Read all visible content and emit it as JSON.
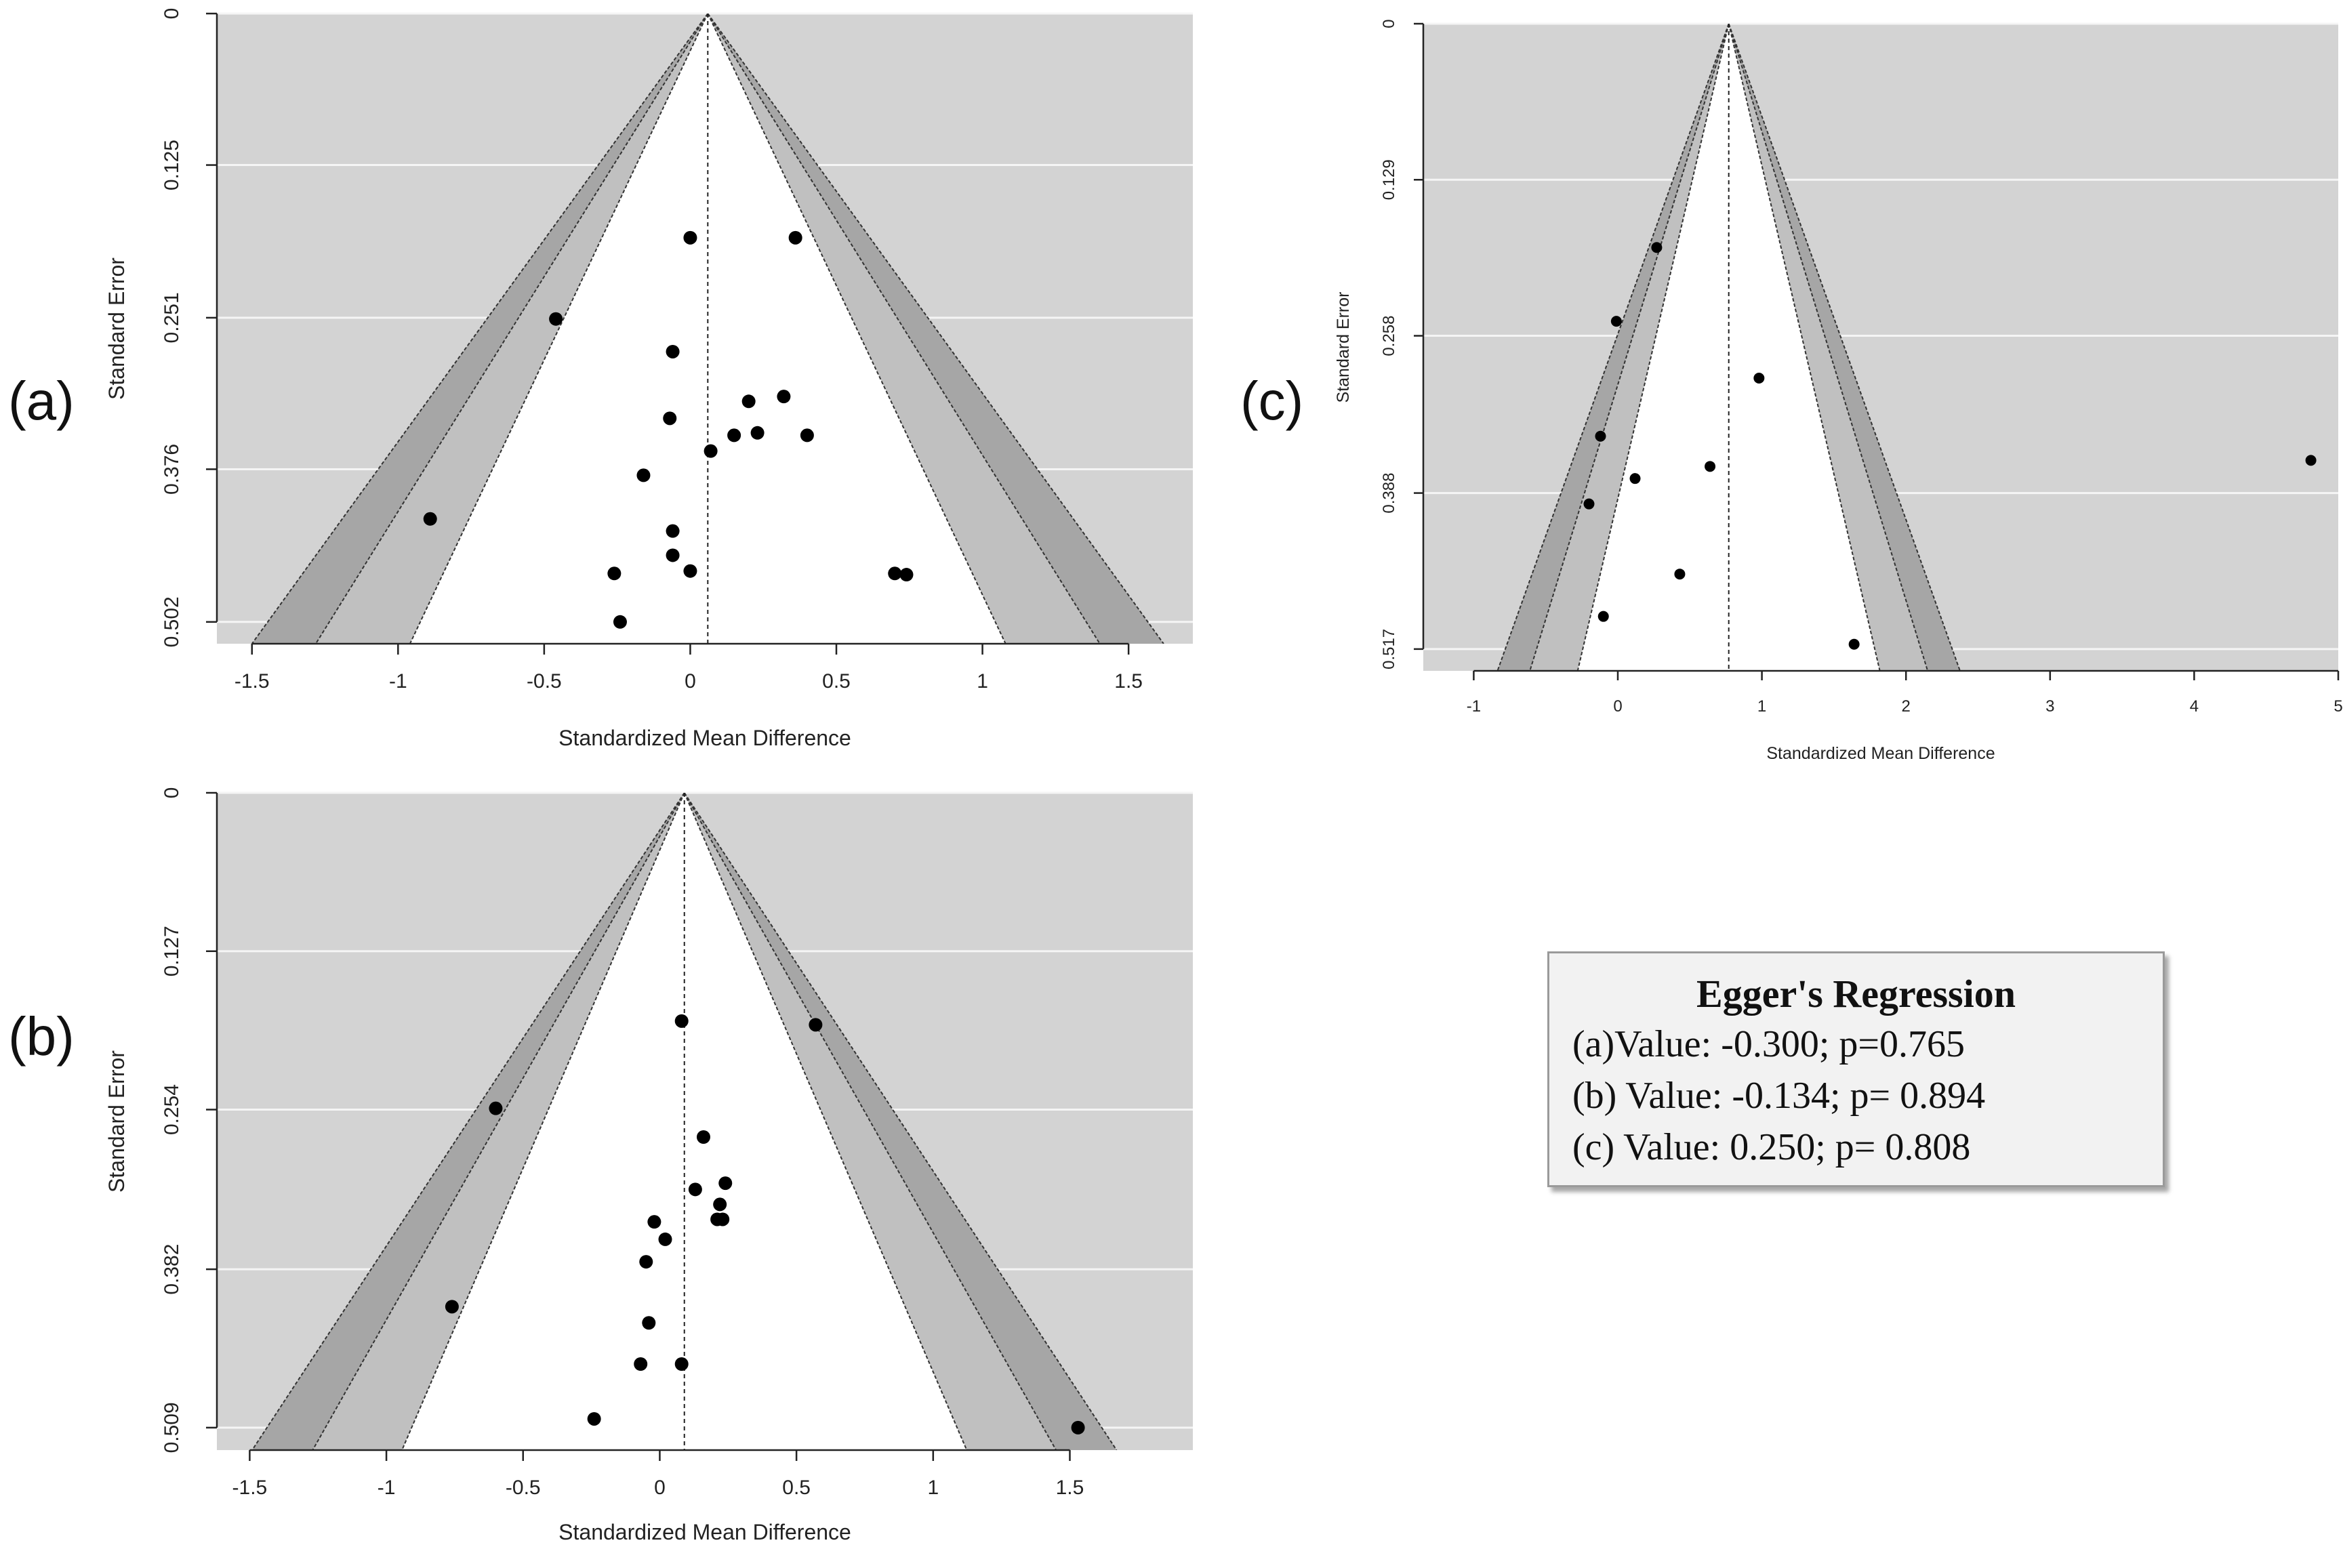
{
  "panels": [
    {
      "id": "a",
      "label": "(a)"
    },
    {
      "id": "b",
      "label": "(b)"
    },
    {
      "id": "c",
      "label": "(c)"
    }
  ],
  "egger": {
    "title": "Egger's Regression",
    "lines": [
      "(a)Value: -0.300; p=0.765",
      "(b) Value: -0.134; p= 0.894",
      "(c) Value: 0.250; p= 0.808"
    ]
  },
  "colors": {
    "background": "#d3d3d3",
    "outer_band": "#a6a6a6",
    "middle_band": "#c0c0c0",
    "inner_funnel": "#ffffff",
    "points": "#000000",
    "gridline": "#f5f5f5"
  },
  "chart_data": [
    {
      "id": "a",
      "type": "scatter",
      "subtype": "contour-enhanced funnel",
      "xlabel": "Standardized Mean Difference",
      "ylabel": "Standard Error",
      "xlim": [
        -1.62,
        1.72
      ],
      "ylim": [
        0,
        0.52
      ],
      "y_reversed": true,
      "xticks": [
        -1.5,
        -1,
        -0.5,
        0,
        0.5,
        1,
        1.5
      ],
      "xtick_labels": [
        "-1.5",
        "-1",
        "-0.5",
        "0",
        "0.5",
        "1",
        "1.5"
      ],
      "yticks": [
        0,
        0.125,
        0.251,
        0.376,
        0.502
      ],
      "ytick_labels": [
        "0",
        "0.125",
        "0.251",
        "0.376",
        "0.502"
      ],
      "center": 0.06,
      "z_levels": [
        1.96,
        2.58,
        3.0
      ],
      "points": [
        {
          "x": 0.0,
          "y": 0.185
        },
        {
          "x": 0.36,
          "y": 0.185
        },
        {
          "x": -0.46,
          "y": 0.252
        },
        {
          "x": -0.06,
          "y": 0.279
        },
        {
          "x": 0.2,
          "y": 0.32
        },
        {
          "x": 0.32,
          "y": 0.316
        },
        {
          "x": -0.07,
          "y": 0.334
        },
        {
          "x": 0.15,
          "y": 0.348
        },
        {
          "x": 0.23,
          "y": 0.346
        },
        {
          "x": 0.4,
          "y": 0.348
        },
        {
          "x": 0.07,
          "y": 0.361
        },
        {
          "x": -0.16,
          "y": 0.381
        },
        {
          "x": -0.89,
          "y": 0.417
        },
        {
          "x": -0.06,
          "y": 0.427
        },
        {
          "x": -0.06,
          "y": 0.447
        },
        {
          "x": 0.0,
          "y": 0.46
        },
        {
          "x": -0.26,
          "y": 0.462
        },
        {
          "x": 0.7,
          "y": 0.462
        },
        {
          "x": 0.74,
          "y": 0.463
        },
        {
          "x": -0.24,
          "y": 0.502
        }
      ]
    },
    {
      "id": "b",
      "type": "scatter",
      "subtype": "contour-enhanced funnel",
      "xlabel": "Standardized Mean Difference",
      "ylabel": "Standard Error",
      "xlim": [
        -1.62,
        1.95
      ],
      "ylim": [
        0,
        0.527
      ],
      "y_reversed": true,
      "xticks": [
        -1.5,
        -1,
        -0.5,
        0,
        0.5,
        1,
        1.5
      ],
      "xtick_labels": [
        "-1.5",
        "-1",
        "-0.5",
        "0",
        "0.5",
        "1",
        "1.5"
      ],
      "yticks": [
        0,
        0.127,
        0.254,
        0.382,
        0.509
      ],
      "ytick_labels": [
        "0",
        "0.127",
        "0.254",
        "0.382",
        "0.509"
      ],
      "center": 0.09,
      "z_levels": [
        1.96,
        2.58,
        3.0
      ],
      "points": [
        {
          "x": 0.08,
          "y": 0.183
        },
        {
          "x": 0.57,
          "y": 0.186
        },
        {
          "x": -0.6,
          "y": 0.253
        },
        {
          "x": 0.16,
          "y": 0.276
        },
        {
          "x": 0.24,
          "y": 0.313
        },
        {
          "x": 0.13,
          "y": 0.318
        },
        {
          "x": 0.22,
          "y": 0.33
        },
        {
          "x": 0.21,
          "y": 0.342
        },
        {
          "x": 0.23,
          "y": 0.342
        },
        {
          "x": -0.02,
          "y": 0.344
        },
        {
          "x": 0.02,
          "y": 0.358
        },
        {
          "x": -0.05,
          "y": 0.376
        },
        {
          "x": -0.76,
          "y": 0.412
        },
        {
          "x": -0.04,
          "y": 0.425
        },
        {
          "x": -0.07,
          "y": 0.458
        },
        {
          "x": 0.08,
          "y": 0.458
        },
        {
          "x": -0.24,
          "y": 0.502
        },
        {
          "x": 1.53,
          "y": 0.509
        }
      ]
    },
    {
      "id": "c",
      "type": "scatter",
      "subtype": "contour-enhanced funnel",
      "xlabel": "Standardized Mean Difference",
      "ylabel": "Standard Error",
      "xlim": [
        -1.35,
        5.0
      ],
      "ylim": [
        0,
        0.535
      ],
      "y_reversed": true,
      "xticks": [
        -1,
        0,
        1,
        2,
        3,
        4,
        5
      ],
      "xtick_labels": [
        "-1",
        "0",
        "1",
        "2",
        "3",
        "4",
        "5"
      ],
      "yticks": [
        0,
        0.129,
        0.258,
        0.388,
        0.517
      ],
      "ytick_labels": [
        "0",
        "0.129",
        "0.258",
        "0.388",
        "0.517"
      ],
      "center": 0.77,
      "z_levels": [
        1.96,
        2.58,
        3.0
      ],
      "points": [
        {
          "x": 0.27,
          "y": 0.185
        },
        {
          "x": -0.01,
          "y": 0.246
        },
        {
          "x": 0.98,
          "y": 0.293
        },
        {
          "x": -0.12,
          "y": 0.341
        },
        {
          "x": 0.64,
          "y": 0.366
        },
        {
          "x": 0.12,
          "y": 0.376
        },
        {
          "x": -0.2,
          "y": 0.397
        },
        {
          "x": 0.43,
          "y": 0.455
        },
        {
          "x": -0.1,
          "y": 0.49
        },
        {
          "x": 1.64,
          "y": 0.513
        },
        {
          "x": 4.81,
          "y": 0.361
        }
      ]
    }
  ]
}
